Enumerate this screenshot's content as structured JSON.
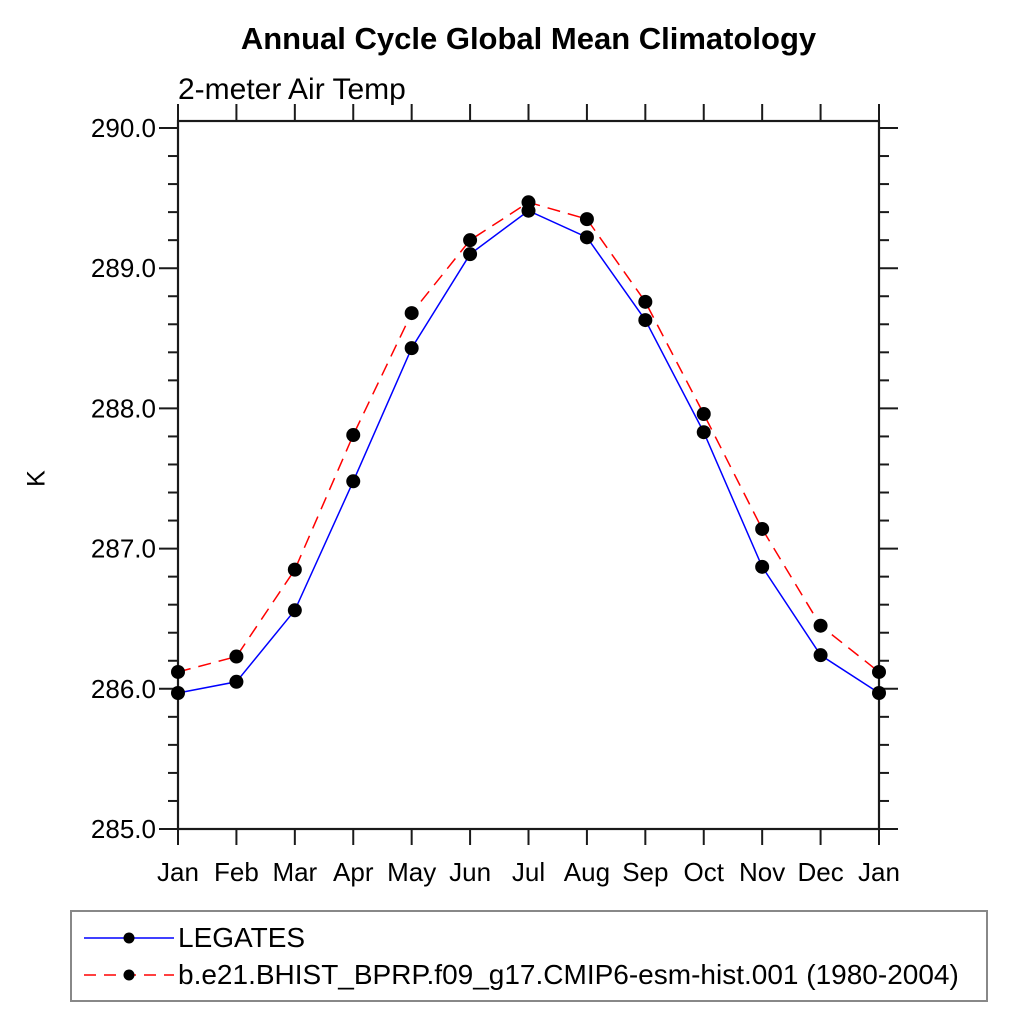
{
  "title": "Annual Cycle Global Mean Climatology",
  "subtitle": "2-meter Air Temp",
  "y_axis": {
    "label": "K",
    "tick_values": [
      285,
      286,
      287,
      288,
      289,
      290
    ],
    "tick_labels": [
      "285.0",
      "286.0",
      "287.0",
      "288.0",
      "289.0",
      "290.0"
    ],
    "minor_tick_step": 0.2,
    "range_min": 285.0,
    "range_max": 290.0
  },
  "x_axis": {
    "tick_labels": [
      "Jan",
      "Feb",
      "Mar",
      "Apr",
      "May",
      "Jun",
      "Jul",
      "Aug",
      "Sep",
      "Oct",
      "Nov",
      "Dec",
      "Jan"
    ]
  },
  "chart_data": {
    "type": "line",
    "title": "Annual Cycle Global Mean Climatology",
    "subtitle": "2-meter Air Temp",
    "xlabel": "",
    "ylabel": "K",
    "ylim": [
      285.0,
      290.0
    ],
    "grid": false,
    "legend_position": "bottom",
    "categories": [
      "Jan",
      "Feb",
      "Mar",
      "Apr",
      "May",
      "Jun",
      "Jul",
      "Aug",
      "Sep",
      "Oct",
      "Nov",
      "Dec",
      "Jan"
    ],
    "series": [
      {
        "name": "LEGATES",
        "color": "#0000ff",
        "line_style": "solid",
        "marker": "filled-circle",
        "marker_color": "#000000",
        "values": [
          285.97,
          286.05,
          286.56,
          287.48,
          288.43,
          289.1,
          289.41,
          289.22,
          288.63,
          287.83,
          286.87,
          286.24,
          285.97
        ]
      },
      {
        "name": "b.e21.BHIST_BPRP.f09_g17.CMIP6-esm-hist.001 (1980-2004)",
        "color": "#ff0000",
        "line_style": "dashed",
        "marker": "filled-circle",
        "marker_color": "#000000",
        "values": [
          286.12,
          286.23,
          286.85,
          287.81,
          288.68,
          289.2,
          289.47,
          289.35,
          288.76,
          287.96,
          287.14,
          286.45,
          286.12
        ]
      }
    ]
  },
  "colors": {
    "axis": "#1a1a1a",
    "text": "#000000",
    "legend_border": "#888888",
    "background": "#ffffff",
    "series_blue": "#0000ff",
    "series_red": "#ff0000",
    "marker": "#000000"
  }
}
